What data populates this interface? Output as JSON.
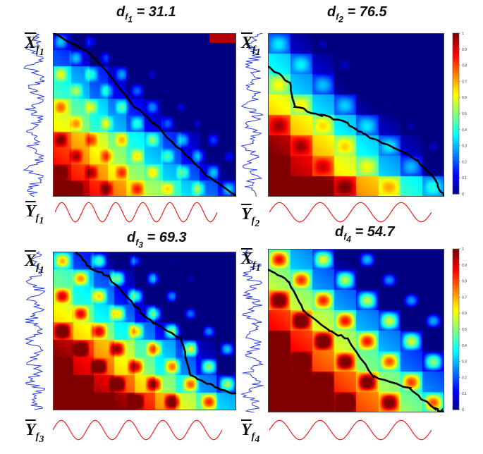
{
  "panels": [
    {
      "id": "p1",
      "title_base": "d",
      "title_sub": "f",
      "title_subsub": "1",
      "title_value": "31.1",
      "x_label": "X",
      "x_sub": "f",
      "x_subsub": "1",
      "y_label": "Y",
      "y_sub": "f",
      "y_subsub": "1"
    },
    {
      "id": "p2",
      "title_base": "d",
      "title_sub": "f",
      "title_subsub": "2",
      "title_value": "76.5",
      "x_label": "X",
      "x_sub": "f",
      "x_subsub": "1",
      "y_label": "Y",
      "y_sub": "f",
      "y_subsub": "2"
    },
    {
      "id": "p3",
      "title_base": "d",
      "title_sub": "f",
      "title_subsub": "3",
      "title_value": "69.3",
      "x_label": "X",
      "x_sub": "f",
      "x_subsub": "1",
      "y_label": "Y",
      "y_sub": "f",
      "y_subsub": "3"
    },
    {
      "id": "p4",
      "title_base": "d",
      "title_sub": "f",
      "title_subsub": "4",
      "title_value": "54.7",
      "x_label": "X",
      "x_sub": "f",
      "x_subsub": "1",
      "y_label": "Y",
      "y_sub": "f",
      "y_subsub": "4"
    }
  ],
  "chart_data": {
    "type": "heatmap",
    "colormap": "jet",
    "colorbar": {
      "range": [
        0,
        1
      ],
      "ticks": [
        "0",
        "0.1",
        "0.2",
        "0.3",
        "0.4",
        "0.5",
        "0.6",
        "0.7",
        "0.8",
        "0.9",
        "1"
      ],
      "label": "",
      "shown_on_panels": [
        "p2",
        "p4"
      ]
    },
    "distances": [
      {
        "panel": "d_f1",
        "value": 31.1
      },
      {
        "panel": "d_f2",
        "value": 76.5
      },
      {
        "panel": "d_f3",
        "value": 69.3
      },
      {
        "panel": "d_f4",
        "value": 54.7
      }
    ],
    "x_signal": "noisy blue trace (left side, vertical)",
    "y_signal": "sinusoid (red, bottom)",
    "y_signal_periods": [
      6,
      4,
      5,
      4
    ],
    "colors": {
      "path": "#000000",
      "x_trace": "#2a3fd9",
      "y_trace": "#e8231f"
    }
  }
}
